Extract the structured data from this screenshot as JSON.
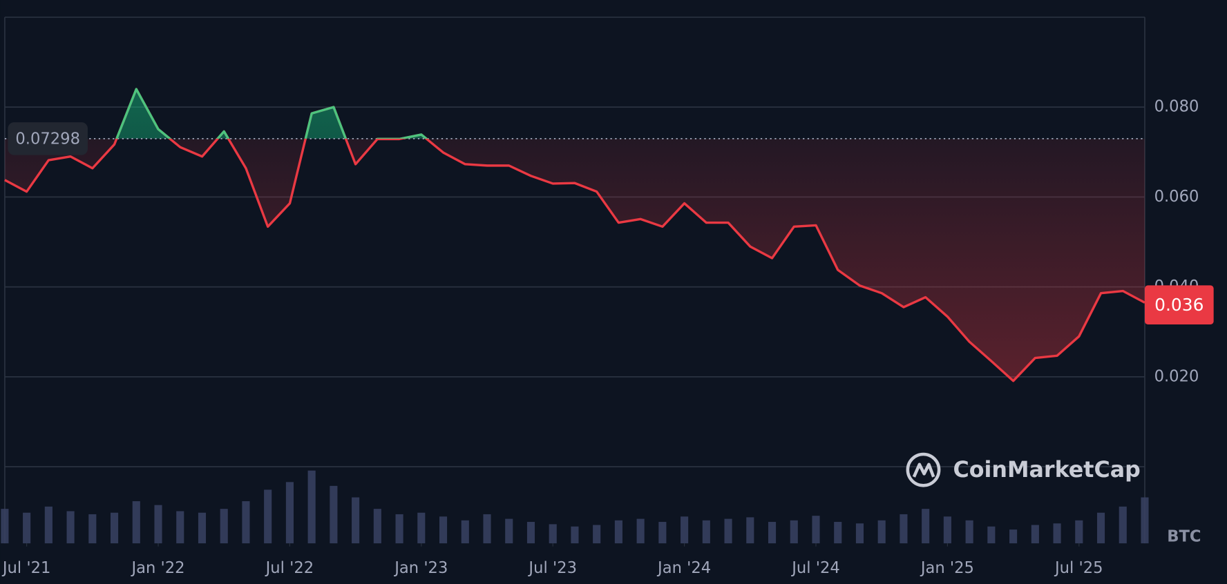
{
  "chart_data": {
    "type": "line",
    "x": [
      "2021-06",
      "2021-07",
      "2021-08",
      "2021-09",
      "2021-10",
      "2021-11",
      "2021-12",
      "2022-01",
      "2022-02",
      "2022-03",
      "2022-04",
      "2022-05",
      "2022-06",
      "2022-07",
      "2022-08",
      "2022-09",
      "2022-10",
      "2022-11",
      "2022-12",
      "2023-01",
      "2023-02",
      "2023-03",
      "2023-04",
      "2023-05",
      "2023-06",
      "2023-07",
      "2023-08",
      "2023-09",
      "2023-10",
      "2023-11",
      "2023-12",
      "2024-01",
      "2024-02",
      "2024-03",
      "2024-04",
      "2024-05",
      "2024-06",
      "2024-07",
      "2024-08",
      "2024-09",
      "2024-10",
      "2024-11",
      "2024-12",
      "2025-01",
      "2025-02",
      "2025-03",
      "2025-04",
      "2025-05",
      "2025-06",
      "2025-07",
      "2025-08",
      "2025-09",
      "2025-10"
    ],
    "values": [
      0.0638,
      0.0612,
      0.0682,
      0.069,
      0.0664,
      0.0717,
      0.084,
      0.0751,
      0.0711,
      0.069,
      0.0746,
      0.0664,
      0.0534,
      0.0586,
      0.0786,
      0.08,
      0.0673,
      0.0729,
      0.0729,
      0.0739,
      0.0699,
      0.0673,
      0.067,
      0.067,
      0.0647,
      0.063,
      0.0631,
      0.0612,
      0.0543,
      0.0551,
      0.0534,
      0.0586,
      0.0543,
      0.0543,
      0.049,
      0.0464,
      0.0534,
      0.0537,
      0.0438,
      0.0403,
      0.0386,
      0.0355,
      0.0377,
      0.0334,
      0.0278,
      0.0235,
      0.0191,
      0.0242,
      0.0247,
      0.029,
      0.0386,
      0.0391,
      0.0365
    ],
    "volume": [
      45,
      40,
      48,
      42,
      38,
      40,
      55,
      50,
      42,
      40,
      45,
      55,
      70,
      80,
      95,
      75,
      60,
      45,
      38,
      40,
      35,
      30,
      38,
      32,
      28,
      25,
      22,
      24,
      30,
      32,
      28,
      35,
      30,
      32,
      34,
      28,
      30,
      36,
      28,
      26,
      30,
      38,
      45,
      35,
      30,
      22,
      18,
      24,
      26,
      30,
      40,
      48,
      60
    ],
    "xlim": [
      "2021-06",
      "2025-10"
    ],
    "xticks": [
      {
        "value": "2021-07",
        "label": "Jul '21"
      },
      {
        "value": "2022-01",
        "label": "Jan '22"
      },
      {
        "value": "2022-07",
        "label": "Jul '22"
      },
      {
        "value": "2023-01",
        "label": "Jan '23"
      },
      {
        "value": "2023-07",
        "label": "Jul '23"
      },
      {
        "value": "2024-01",
        "label": "Jan '24"
      },
      {
        "value": "2024-07",
        "label": "Jul '24"
      },
      {
        "value": "2025-01",
        "label": "Jan '25"
      },
      {
        "value": "2025-07",
        "label": "Jul '25"
      }
    ],
    "ylim": [
      0,
      0.1
    ],
    "yticks": [
      {
        "value": 0.02,
        "label": "0.020"
      },
      {
        "value": 0.04,
        "label": "0.040"
      },
      {
        "value": 0.06,
        "label": "0.060"
      },
      {
        "value": 0.08,
        "label": "0.080"
      }
    ],
    "volume_lim": [
      0,
      100
    ],
    "baseline": 0.07298,
    "current_value": 0.036,
    "volume_unit": "BTC",
    "watermark": "CoinMarketCap",
    "color_up": "#4cc47e",
    "color_down": "#ea3943",
    "grid": true
  }
}
